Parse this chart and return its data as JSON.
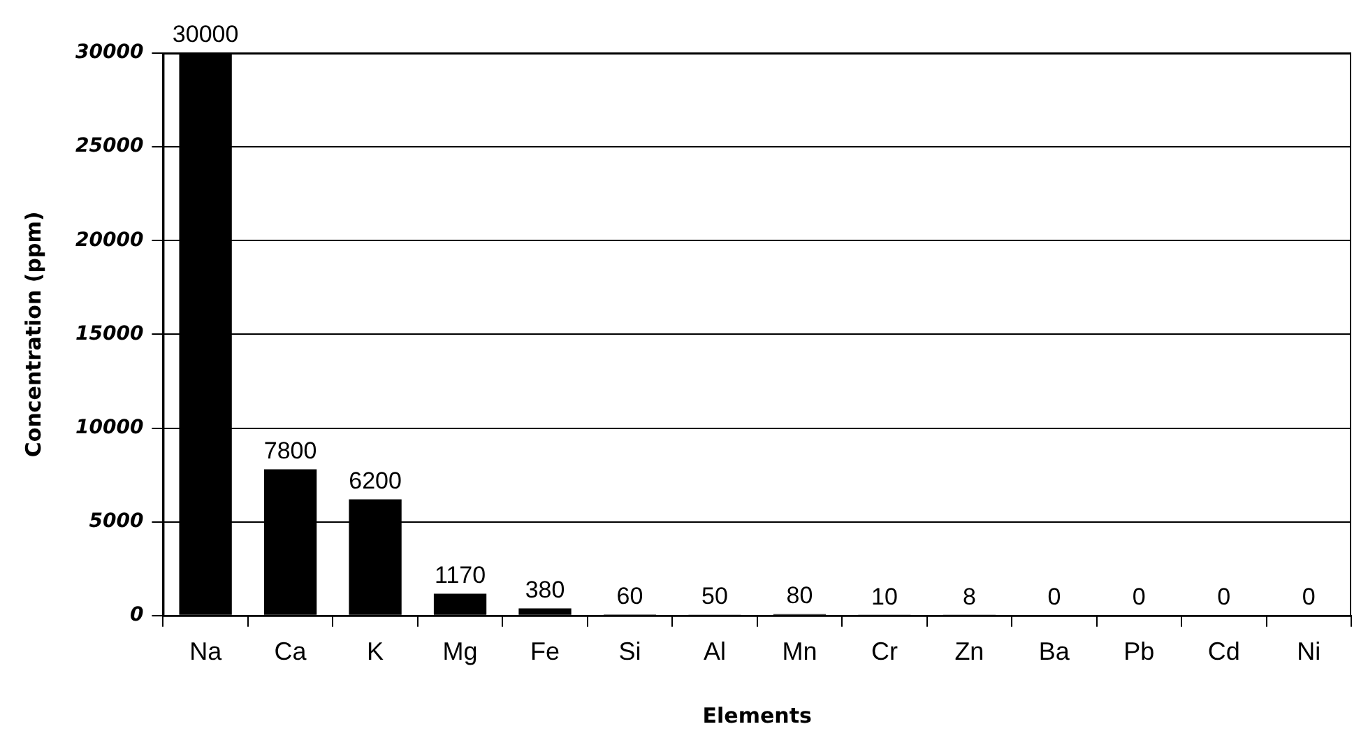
{
  "chart_data": {
    "type": "bar",
    "xlabel": "Elements",
    "ylabel": "Concentration (ppm)",
    "categories": [
      "Na",
      "Ca",
      "K",
      "Mg",
      "Fe",
      "Si",
      "Al",
      "Mn",
      "Cr",
      "Zn",
      "Ba",
      "Pb",
      "Cd",
      "Ni"
    ],
    "values": [
      30000,
      7800,
      6200,
      1170,
      380,
      60,
      50,
      80,
      10,
      8,
      0,
      0,
      0,
      0
    ],
    "color": "#000000",
    "ylim": [
      0,
      30000
    ],
    "yticks": [
      0,
      5000,
      10000,
      15000,
      20000,
      25000,
      30000
    ],
    "grid": "y",
    "data_labels": true
  }
}
